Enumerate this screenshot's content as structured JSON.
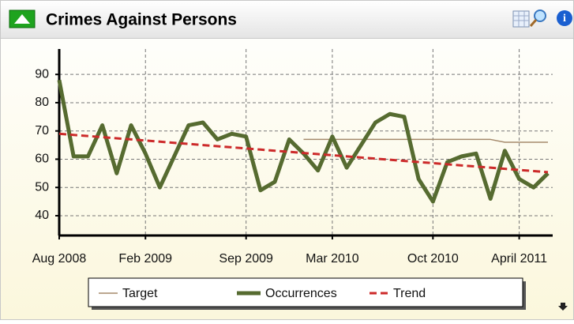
{
  "chart_data": {
    "type": "line",
    "title": "Crimes Against Persons",
    "categories": [
      "Aug 2008",
      null,
      null,
      null,
      null,
      null,
      "Feb 2009",
      null,
      null,
      null,
      null,
      null,
      null,
      "Sep 2009",
      null,
      null,
      null,
      null,
      null,
      "Mar 2010",
      null,
      null,
      null,
      null,
      null,
      null,
      "Oct 2010",
      null,
      null,
      null,
      null,
      null,
      "April 2011",
      null,
      null
    ],
    "series": [
      {
        "name": "Target",
        "color": "#a58a6c",
        "values": [
          null,
          null,
          null,
          null,
          null,
          null,
          null,
          null,
          null,
          null,
          null,
          null,
          null,
          null,
          null,
          null,
          null,
          67,
          67,
          67,
          67,
          67,
          67,
          67,
          67,
          67,
          67,
          67,
          67,
          67,
          67,
          66,
          66,
          66,
          66
        ]
      },
      {
        "name": "Occurrences",
        "color": "#566b30",
        "values": [
          88,
          61,
          61,
          72,
          55,
          72,
          62,
          50,
          61,
          72,
          73,
          67,
          69,
          68,
          49,
          52,
          67,
          62,
          56,
          68,
          57,
          65,
          73,
          76,
          75,
          53,
          45,
          59,
          61,
          62,
          46,
          63,
          53,
          50,
          55
        ]
      },
      {
        "name": "Trend",
        "color": "#cc2a2a",
        "values": [
          69,
          68.6,
          68.2,
          67.8,
          67.4,
          67,
          66.6,
          66.2,
          65.8,
          65.4,
          65,
          64.6,
          64.2,
          63.8,
          63.4,
          63,
          62.6,
          62.2,
          61.8,
          61.4,
          61,
          60.6,
          60.2,
          59.8,
          59.4,
          59,
          58.6,
          58.2,
          57.8,
          57.4,
          57,
          56.6,
          56.2,
          55.8,
          55.4
        ]
      }
    ],
    "ylim": [
      33,
      99
    ],
    "yticks": [
      40,
      50,
      60,
      70,
      80,
      90
    ],
    "grid": true,
    "legend": "bottom"
  }
}
